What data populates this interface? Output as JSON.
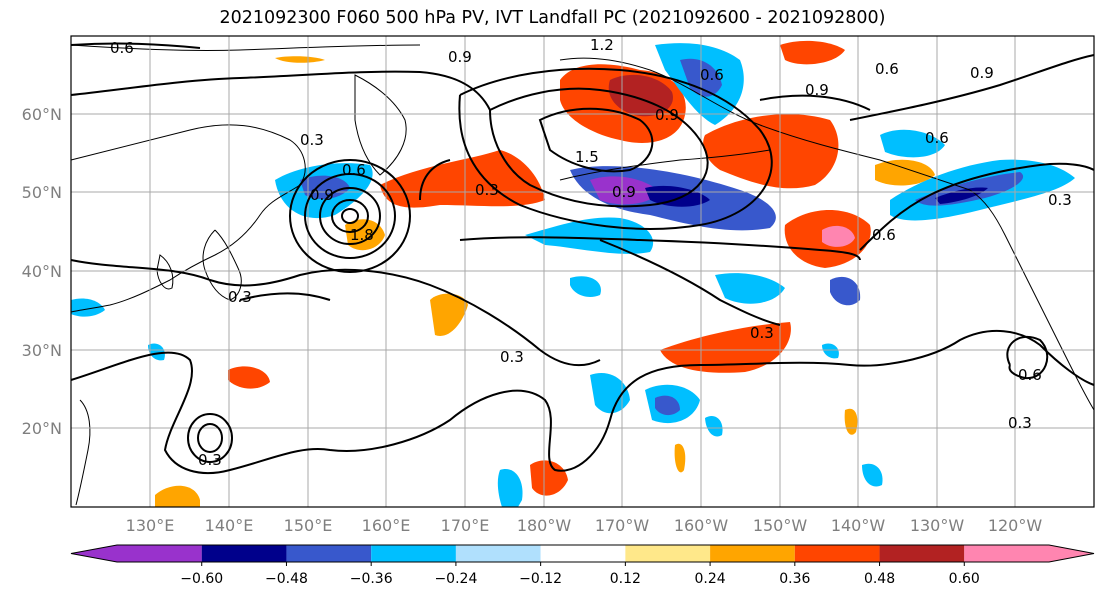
{
  "title": "2021092300 F060 500 hPa PV, IVT Landfall PC (2021092600 - 2021092800)",
  "lat_labels": [
    "60°N",
    "50°N",
    "40°N",
    "30°N",
    "20°N"
  ],
  "lon_labels": [
    "130°E",
    "140°E",
    "150°E",
    "160°E",
    "170°E",
    "180°W",
    "170°W",
    "160°W",
    "150°W",
    "140°W",
    "130°W",
    "120°W"
  ],
  "contour_labels": [
    "0.6",
    "0.9",
    "1.2",
    "0.6",
    "0.9",
    "0.3",
    "0.6",
    "0.9",
    "1.5",
    "0.9",
    "0.6",
    "0.3",
    "0.3",
    "0.3",
    "0.3",
    "0.6",
    "0.3",
    "0.9",
    "0.6",
    "0.3",
    "0.9",
    "1.8",
    "0.6",
    "0.3"
  ],
  "colorbar": {
    "ticks": [
      "−0.60",
      "−0.48",
      "−0.36",
      "−0.24",
      "−0.12",
      "0.12",
      "0.24",
      "0.36",
      "0.48",
      "0.60"
    ],
    "colors": [
      "#9932cc",
      "#00008b",
      "#3858cc",
      "#00bfff",
      "#b0e0fd",
      "#ffffff",
      "#ffe88a",
      "#ffa500",
      "#ff4500",
      "#b22222",
      "#ff85b0"
    ]
  },
  "palette": {
    "neg_strong": "#00008b",
    "neg_mid": "#3858cc",
    "neg_light": "#00bfff",
    "pos_light": "#ffa500",
    "pos_mid": "#ff4500",
    "pos_strong": "#b22222"
  }
}
